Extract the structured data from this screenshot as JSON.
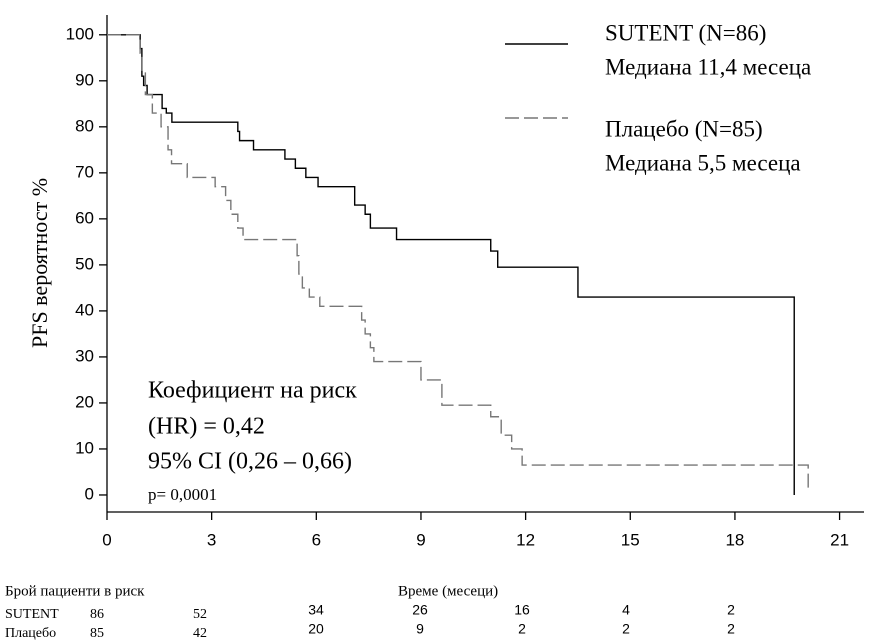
{
  "chart_data": {
    "type": "step",
    "ylabel": "PFS вероятност %",
    "xlim": [
      0,
      21.7
    ],
    "ylim": [
      -3.7,
      104.3
    ],
    "xticks": [
      0,
      3,
      6,
      9,
      12,
      15,
      18,
      21
    ],
    "yticks": [
      0,
      10,
      20,
      30,
      40,
      50,
      60,
      70,
      80,
      90,
      100
    ],
    "series": [
      {
        "name": "SUTENT (N=86)",
        "median": "Медиана 11,4 месеца",
        "color": "#000000",
        "dash": false,
        "x": [
          0,
          0.86,
          0.95,
          1.0,
          1.05,
          1.15,
          1.58,
          1.7,
          1.86,
          3.75,
          3.8,
          4.2,
          5.1,
          5.4,
          5.7,
          6.05,
          7.1,
          7.4,
          7.55,
          8.3,
          11.0,
          11.2,
          13.5,
          19.7
        ],
        "values": [
          100,
          100,
          97,
          91,
          89,
          87,
          84,
          83,
          81,
          79,
          77,
          75,
          73,
          71,
          69,
          67,
          63,
          61,
          58,
          55.5,
          53,
          49.5,
          43,
          0
        ]
      },
      {
        "name": "Плацебо (N=85)",
        "median": "Медиана 5,5 месеца",
        "color": "#777777",
        "dash": true,
        "x": [
          0,
          0.9,
          0.95,
          1.0,
          1.1,
          1.3,
          1.55,
          1.75,
          1.85,
          2.3,
          3.1,
          3.4,
          3.55,
          3.75,
          3.9,
          5.45,
          5.5,
          5.6,
          5.8,
          6.1,
          7.3,
          7.4,
          7.55,
          7.65,
          9.0,
          9.6,
          11.0,
          11.3,
          11.6,
          11.9,
          20.1
        ],
        "values": [
          100,
          100,
          96,
          92,
          87,
          83,
          80,
          75,
          72,
          69,
          67,
          64,
          61,
          58,
          55.5,
          52,
          48,
          45,
          43,
          41,
          38,
          35,
          32,
          29,
          25,
          19.5,
          17,
          13,
          10,
          6.5,
          1.5
        ]
      }
    ],
    "annotation": [
      "Коефициент на риск",
      "(HR) = 0,42",
      "95% CI (0,26 – 0,66)",
      "p= 0,0001"
    ],
    "at_risk": {
      "title": "Брой пациенти в риск",
      "time_label": "Време (месеци)",
      "rows": [
        {
          "name": "SUTENT",
          "values": [
            "86",
            "52",
            "34",
            "26",
            "16",
            "4",
            "2"
          ]
        },
        {
          "name": "Плацебо",
          "values": [
            "85",
            "42",
            "20",
            "9",
            "2",
            "2",
            "2"
          ]
        }
      ]
    }
  }
}
